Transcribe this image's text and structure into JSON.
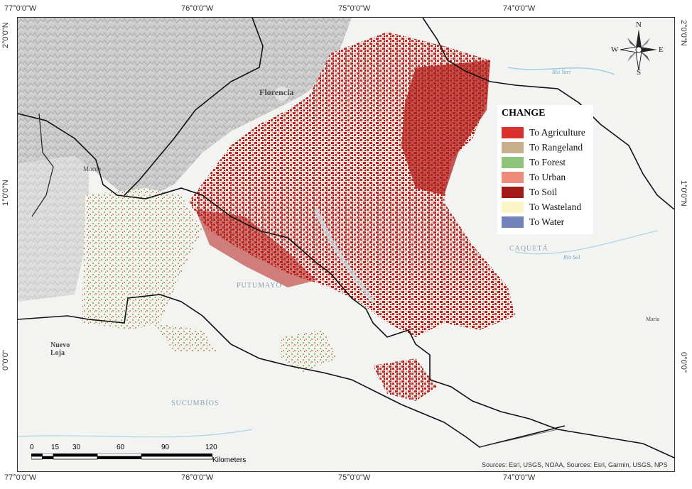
{
  "map": {
    "longitude_ticks": [
      "77°0'0\"W",
      "76°0'0\"W",
      "75°0'0\"W",
      "74°0'0\"W"
    ],
    "latitude_ticks": [
      "2°0'0\"N",
      "1°0'0\"N",
      "0°0'0\""
    ],
    "places": {
      "florencia": "Florencia",
      "mocoa": "Mocoa",
      "putumayo": "PUTUMAYO",
      "caqueta": "CAQUETÁ",
      "nuevo_loja": "Nuevo Loja",
      "sucumbios": "SUCUMBÍOS",
      "rio_yari": "Río Yarí",
      "rio_sol": "Río Sol",
      "maria": "Maria"
    },
    "legend": {
      "title": "CHANGE",
      "items": [
        {
          "label": "To Agriculture",
          "color": "#d9312e"
        },
        {
          "label": "To Rangeland",
          "color": "#c8b08c"
        },
        {
          "label": "To Forest",
          "color": "#8dc37a"
        },
        {
          "label": "To Urban",
          "color": "#ef8b7b"
        },
        {
          "label": "To Soil",
          "color": "#a21a17"
        },
        {
          "label": "To Wasteland",
          "color": "#fbf5c6"
        },
        {
          "label": "To Water",
          "color": "#7282ba"
        }
      ]
    },
    "scale": {
      "ticks": [
        "0",
        "15",
        "30",
        "60",
        "90",
        "120"
      ],
      "unit": "Kilometers"
    },
    "compass": {
      "n": "N",
      "s": "S",
      "e": "E",
      "w": "W"
    },
    "attribution": "Sources: Esri, USGS, NOAA, Sources: Esri, Garmin, USGS, NPS"
  }
}
